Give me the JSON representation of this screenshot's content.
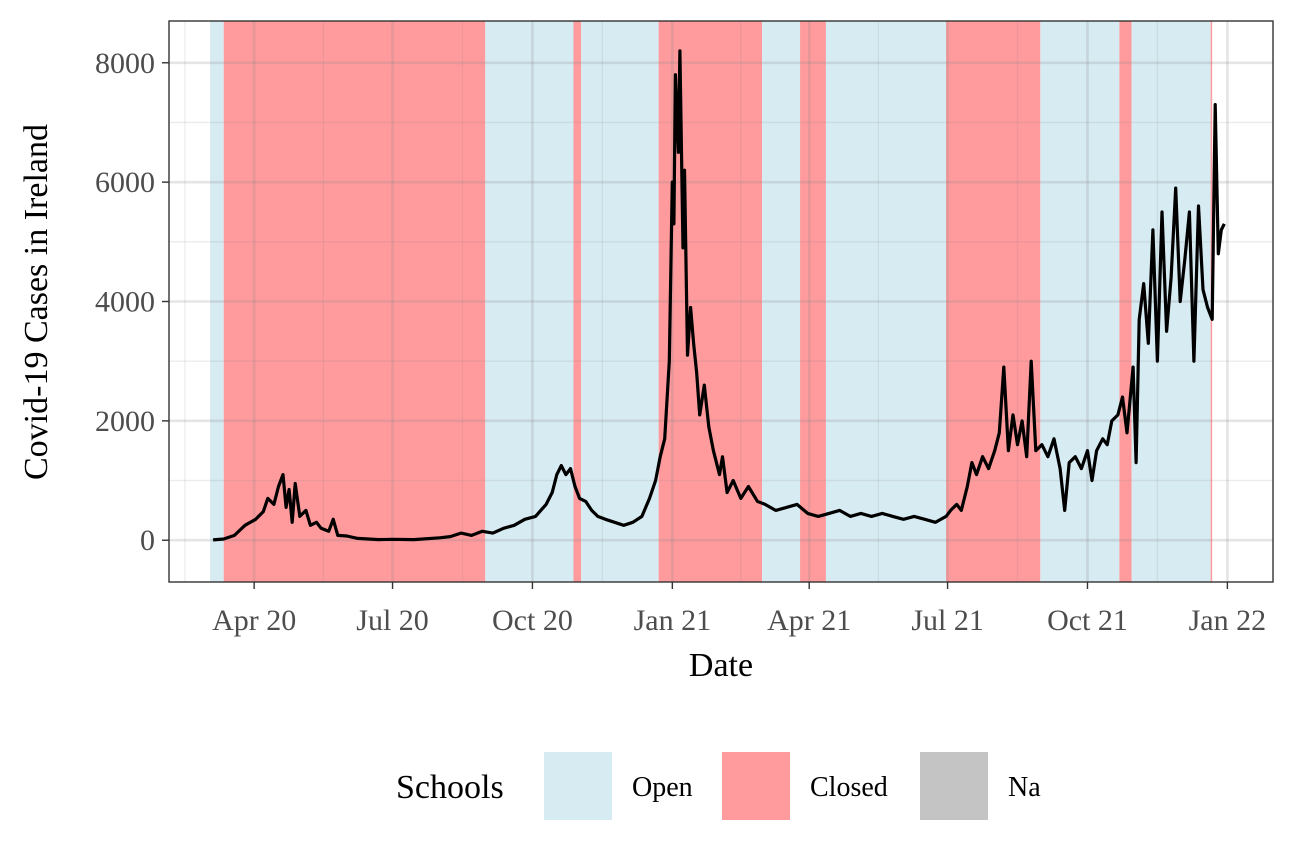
{
  "chart_data": {
    "type": "line",
    "xlabel": "Date",
    "ylabel": "Covid-19 Cases in Ireland",
    "x_tick_labels": [
      {
        "date": "2020-04-01",
        "label": "Apr 20"
      },
      {
        "date": "2020-07-01",
        "label": "Jul 20"
      },
      {
        "date": "2020-10-01",
        "label": "Oct 20"
      },
      {
        "date": "2021-01-01",
        "label": "Jan 21"
      },
      {
        "date": "2021-04-01",
        "label": "Apr 21"
      },
      {
        "date": "2021-07-01",
        "label": "Jul 21"
      },
      {
        "date": "2021-10-01",
        "label": "Oct 21"
      },
      {
        "date": "2022-01-01",
        "label": "Jan 22"
      }
    ],
    "y_ticks": [
      0,
      2000,
      4000,
      6000,
      8000
    ],
    "xlim": [
      "2020-02-05",
      "2022-01-31"
    ],
    "ylim": [
      -700,
      8700
    ],
    "grid": true,
    "series": [
      {
        "values": [
          [
            "2020-03-05",
            5
          ],
          [
            "2020-03-12",
            20
          ],
          [
            "2020-03-19",
            80
          ],
          [
            "2020-03-26",
            250
          ],
          [
            "2020-04-02",
            350
          ],
          [
            "2020-04-07",
            480
          ],
          [
            "2020-04-10",
            700
          ],
          [
            "2020-04-14",
            600
          ],
          [
            "2020-04-17",
            900
          ],
          [
            "2020-04-20",
            1100
          ],
          [
            "2020-04-22",
            550
          ],
          [
            "2020-04-24",
            850
          ],
          [
            "2020-04-26",
            300
          ],
          [
            "2020-04-28",
            950
          ],
          [
            "2020-05-01",
            400
          ],
          [
            "2020-05-05",
            500
          ],
          [
            "2020-05-08",
            250
          ],
          [
            "2020-05-12",
            300
          ],
          [
            "2020-05-15",
            200
          ],
          [
            "2020-05-20",
            150
          ],
          [
            "2020-05-23",
            350
          ],
          [
            "2020-05-26",
            80
          ],
          [
            "2020-06-01",
            70
          ],
          [
            "2020-06-08",
            30
          ],
          [
            "2020-06-15",
            20
          ],
          [
            "2020-06-22",
            10
          ],
          [
            "2020-07-01",
            15
          ],
          [
            "2020-07-15",
            10
          ],
          [
            "2020-08-01",
            40
          ],
          [
            "2020-08-08",
            60
          ],
          [
            "2020-08-15",
            120
          ],
          [
            "2020-08-22",
            80
          ],
          [
            "2020-08-29",
            150
          ],
          [
            "2020-09-05",
            120
          ],
          [
            "2020-09-12",
            200
          ],
          [
            "2020-09-19",
            250
          ],
          [
            "2020-09-26",
            350
          ],
          [
            "2020-10-03",
            400
          ],
          [
            "2020-10-10",
            600
          ],
          [
            "2020-10-14",
            800
          ],
          [
            "2020-10-17",
            1100
          ],
          [
            "2020-10-20",
            1250
          ],
          [
            "2020-10-23",
            1100
          ],
          [
            "2020-10-26",
            1200
          ],
          [
            "2020-10-29",
            900
          ],
          [
            "2020-11-01",
            700
          ],
          [
            "2020-11-05",
            650
          ],
          [
            "2020-11-09",
            500
          ],
          [
            "2020-11-13",
            400
          ],
          [
            "2020-11-18",
            350
          ],
          [
            "2020-11-24",
            300
          ],
          [
            "2020-11-30",
            250
          ],
          [
            "2020-12-06",
            300
          ],
          [
            "2020-12-12",
            400
          ],
          [
            "2020-12-17",
            700
          ],
          [
            "2020-12-21",
            1000
          ],
          [
            "2020-12-24",
            1400
          ],
          [
            "2020-12-27",
            1700
          ],
          [
            "2020-12-30",
            3000
          ],
          [
            "2021-01-01",
            6000
          ],
          [
            "2021-01-02",
            5300
          ],
          [
            "2021-01-03",
            7800
          ],
          [
            "2021-01-05",
            6500
          ],
          [
            "2021-01-06",
            8200
          ],
          [
            "2021-01-08",
            4900
          ],
          [
            "2021-01-09",
            6200
          ],
          [
            "2021-01-11",
            3100
          ],
          [
            "2021-01-13",
            3900
          ],
          [
            "2021-01-15",
            3300
          ],
          [
            "2021-01-17",
            2800
          ],
          [
            "2021-01-19",
            2100
          ],
          [
            "2021-01-22",
            2600
          ],
          [
            "2021-01-25",
            1900
          ],
          [
            "2021-01-28",
            1500
          ],
          [
            "2021-02-01",
            1100
          ],
          [
            "2021-02-03",
            1400
          ],
          [
            "2021-02-06",
            800
          ],
          [
            "2021-02-10",
            1000
          ],
          [
            "2021-02-15",
            700
          ],
          [
            "2021-02-20",
            900
          ],
          [
            "2021-02-26",
            650
          ],
          [
            "2021-03-03",
            600
          ],
          [
            "2021-03-10",
            500
          ],
          [
            "2021-03-17",
            550
          ],
          [
            "2021-03-24",
            600
          ],
          [
            "2021-03-31",
            450
          ],
          [
            "2021-04-07",
            400
          ],
          [
            "2021-04-14",
            450
          ],
          [
            "2021-04-21",
            500
          ],
          [
            "2021-04-28",
            400
          ],
          [
            "2021-05-05",
            450
          ],
          [
            "2021-05-12",
            400
          ],
          [
            "2021-05-19",
            450
          ],
          [
            "2021-05-26",
            400
          ],
          [
            "2021-06-02",
            350
          ],
          [
            "2021-06-09",
            400
          ],
          [
            "2021-06-16",
            350
          ],
          [
            "2021-06-23",
            300
          ],
          [
            "2021-06-30",
            400
          ],
          [
            "2021-07-03",
            500
          ],
          [
            "2021-07-07",
            600
          ],
          [
            "2021-07-10",
            500
          ],
          [
            "2021-07-14",
            900
          ],
          [
            "2021-07-17",
            1300
          ],
          [
            "2021-07-20",
            1100
          ],
          [
            "2021-07-24",
            1400
          ],
          [
            "2021-07-28",
            1200
          ],
          [
            "2021-08-01",
            1500
          ],
          [
            "2021-08-04",
            1800
          ],
          [
            "2021-08-07",
            2900
          ],
          [
            "2021-08-10",
            1500
          ],
          [
            "2021-08-13",
            2100
          ],
          [
            "2021-08-16",
            1600
          ],
          [
            "2021-08-19",
            2000
          ],
          [
            "2021-08-22",
            1400
          ],
          [
            "2021-08-25",
            3000
          ],
          [
            "2021-08-28",
            1500
          ],
          [
            "2021-09-01",
            1600
          ],
          [
            "2021-09-05",
            1400
          ],
          [
            "2021-09-09",
            1700
          ],
          [
            "2021-09-13",
            1200
          ],
          [
            "2021-09-16",
            500
          ],
          [
            "2021-09-19",
            1300
          ],
          [
            "2021-09-23",
            1400
          ],
          [
            "2021-09-27",
            1200
          ],
          [
            "2021-10-01",
            1500
          ],
          [
            "2021-10-04",
            1000
          ],
          [
            "2021-10-07",
            1500
          ],
          [
            "2021-10-11",
            1700
          ],
          [
            "2021-10-14",
            1600
          ],
          [
            "2021-10-17",
            2000
          ],
          [
            "2021-10-21",
            2100
          ],
          [
            "2021-10-24",
            2400
          ],
          [
            "2021-10-27",
            1800
          ],
          [
            "2021-10-31",
            2900
          ],
          [
            "2021-11-02",
            1300
          ],
          [
            "2021-11-04",
            3700
          ],
          [
            "2021-11-07",
            4300
          ],
          [
            "2021-11-10",
            3300
          ],
          [
            "2021-11-13",
            5200
          ],
          [
            "2021-11-16",
            3000
          ],
          [
            "2021-11-19",
            5500
          ],
          [
            "2021-11-22",
            3500
          ],
          [
            "2021-11-25",
            4400
          ],
          [
            "2021-11-28",
            5900
          ],
          [
            "2021-12-01",
            4000
          ],
          [
            "2021-12-04",
            4700
          ],
          [
            "2021-12-07",
            5500
          ],
          [
            "2021-12-10",
            3000
          ],
          [
            "2021-12-13",
            5600
          ],
          [
            "2021-12-16",
            4200
          ],
          [
            "2021-12-19",
            3900
          ],
          [
            "2021-12-22",
            3700
          ],
          [
            "2021-12-24",
            7300
          ],
          [
            "2021-12-26",
            4800
          ],
          [
            "2021-12-28",
            5200
          ],
          [
            "2021-12-30",
            5300
          ]
        ]
      }
    ],
    "shaded_periods": [
      {
        "status": "Open",
        "start": "2020-03-03",
        "end": "2020-03-12"
      },
      {
        "status": "Closed",
        "start": "2020-03-12",
        "end": "2020-08-31"
      },
      {
        "status": "Open",
        "start": "2020-08-31",
        "end": "2020-10-28"
      },
      {
        "status": "Closed",
        "start": "2020-10-28",
        "end": "2020-11-02"
      },
      {
        "status": "Open",
        "start": "2020-11-02",
        "end": "2020-12-23"
      },
      {
        "status": "Closed",
        "start": "2020-12-23",
        "end": "2021-03-01"
      },
      {
        "status": "Open",
        "start": "2021-03-01",
        "end": "2021-03-26"
      },
      {
        "status": "Closed",
        "start": "2021-03-26",
        "end": "2021-04-12"
      },
      {
        "status": "Open",
        "start": "2021-04-12",
        "end": "2021-06-30"
      },
      {
        "status": "Closed",
        "start": "2021-06-30",
        "end": "2021-08-31"
      },
      {
        "status": "Open",
        "start": "2021-08-31",
        "end": "2021-10-22"
      },
      {
        "status": "Closed",
        "start": "2021-10-22",
        "end": "2021-10-30"
      },
      {
        "status": "Open",
        "start": "2021-10-30",
        "end": "2021-12-21"
      },
      {
        "status": "Closed",
        "start": "2021-12-21",
        "end": "2021-12-22"
      }
    ],
    "legend": {
      "title": "Schools",
      "placement": "bottom",
      "entries": [
        {
          "label": "Open",
          "color": "#d7ebf2"
        },
        {
          "label": "Closed",
          "color": "#ff9a9d"
        },
        {
          "label": "Na",
          "color": "#c4c4c4"
        }
      ]
    },
    "colors": {
      "line": "#000000",
      "grid": "#ebebeb",
      "panel_border": "#333333",
      "open": "#d7ebf2",
      "closed": "#ff9a9d",
      "na": "#c4c4c4"
    }
  }
}
